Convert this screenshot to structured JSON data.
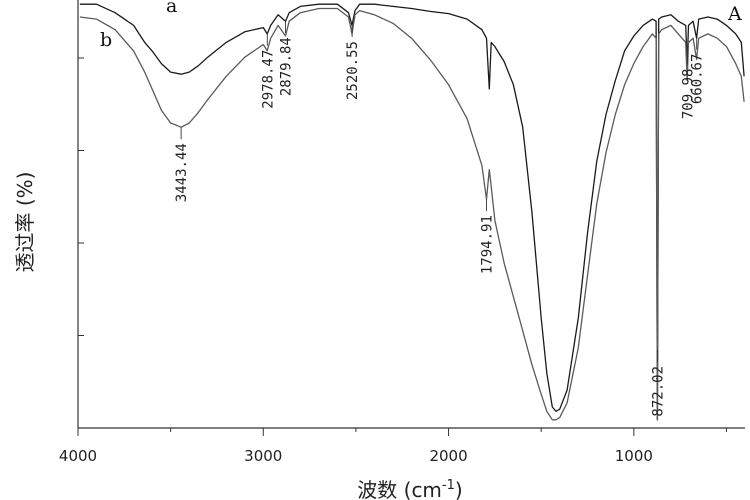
{
  "chart_data": {
    "type": "line",
    "title": "",
    "panel_label": "A",
    "xlabel": "波数 (cm",
    "xlabel_sup": "-1",
    "xlabel_close": ")",
    "ylabel": "透过率 (%)",
    "xlim": [
      4000,
      400
    ],
    "ylim": [
      0,
      100
    ],
    "x_ticks": [
      4000,
      3000,
      2000,
      1000
    ],
    "x_tick_labels": [
      "4000",
      "3000",
      "2000",
      "1000"
    ],
    "grid": false,
    "series": [
      {
        "name": "a",
        "color": "#1a1a1a",
        "points": [
          [
            3990,
            99
          ],
          [
            3900,
            99
          ],
          [
            3800,
            97
          ],
          [
            3700,
            94
          ],
          [
            3640,
            90
          ],
          [
            3600,
            88
          ],
          [
            3550,
            85
          ],
          [
            3500,
            83
          ],
          [
            3443,
            82.5
          ],
          [
            3400,
            83
          ],
          [
            3350,
            84.5
          ],
          [
            3300,
            86.5
          ],
          [
            3200,
            90
          ],
          [
            3100,
            92.5
          ],
          [
            3000,
            93.5
          ],
          [
            2979,
            92
          ],
          [
            2960,
            94
          ],
          [
            2920,
            96.5
          ],
          [
            2880,
            95
          ],
          [
            2860,
            97
          ],
          [
            2800,
            98.5
          ],
          [
            2700,
            99
          ],
          [
            2600,
            99
          ],
          [
            2540,
            97
          ],
          [
            2521,
            94
          ],
          [
            2505,
            97.5
          ],
          [
            2480,
            99
          ],
          [
            2400,
            99
          ],
          [
            2300,
            98.5
          ],
          [
            2200,
            98
          ],
          [
            2100,
            97.3
          ],
          [
            2000,
            96.8
          ],
          [
            1900,
            95.5
          ],
          [
            1820,
            93
          ],
          [
            1795,
            91
          ],
          [
            1780,
            79
          ],
          [
            1770,
            90
          ],
          [
            1750,
            89
          ],
          [
            1700,
            85.5
          ],
          [
            1650,
            80
          ],
          [
            1600,
            70
          ],
          [
            1550,
            50
          ],
          [
            1500,
            25
          ],
          [
            1470,
            12
          ],
          [
            1440,
            4
          ],
          [
            1420,
            3
          ],
          [
            1400,
            3.5
          ],
          [
            1360,
            8
          ],
          [
            1300,
            25
          ],
          [
            1250,
            45
          ],
          [
            1200,
            62
          ],
          [
            1150,
            73
          ],
          [
            1100,
            81
          ],
          [
            1050,
            88
          ],
          [
            1000,
            91.5
          ],
          [
            950,
            94
          ],
          [
            900,
            95.5
          ],
          [
            880,
            95
          ],
          [
            873,
            1
          ],
          [
            866,
            95.5
          ],
          [
            850,
            96
          ],
          [
            800,
            96.5
          ],
          [
            760,
            95
          ],
          [
            720,
            94
          ],
          [
            712,
            85
          ],
          [
            705,
            94
          ],
          [
            680,
            95
          ],
          [
            661,
            91
          ],
          [
            650,
            95.5
          ],
          [
            600,
            96
          ],
          [
            550,
            95.5
          ],
          [
            500,
            94
          ],
          [
            450,
            92
          ],
          [
            420,
            90
          ],
          [
            405,
            82
          ]
        ]
      },
      {
        "name": "b",
        "color": "#5a5a5a",
        "points": [
          [
            3990,
            96
          ],
          [
            3900,
            95.5
          ],
          [
            3800,
            93
          ],
          [
            3700,
            88
          ],
          [
            3640,
            83
          ],
          [
            3600,
            79
          ],
          [
            3550,
            74
          ],
          [
            3500,
            71
          ],
          [
            3443,
            70
          ],
          [
            3400,
            71
          ],
          [
            3350,
            73.5
          ],
          [
            3300,
            76.5
          ],
          [
            3200,
            82
          ],
          [
            3100,
            86.5
          ],
          [
            3000,
            89.5
          ],
          [
            2979,
            88
          ],
          [
            2960,
            91
          ],
          [
            2920,
            94
          ],
          [
            2880,
            91.5
          ],
          [
            2860,
            95
          ],
          [
            2800,
            97
          ],
          [
            2700,
            98
          ],
          [
            2600,
            98
          ],
          [
            2540,
            96
          ],
          [
            2521,
            92
          ],
          [
            2505,
            96.5
          ],
          [
            2480,
            97.5
          ],
          [
            2400,
            96.5
          ],
          [
            2300,
            94.5
          ],
          [
            2200,
            91
          ],
          [
            2100,
            86
          ],
          [
            2000,
            80
          ],
          [
            1900,
            72
          ],
          [
            1820,
            61
          ],
          [
            1795,
            53
          ],
          [
            1780,
            60
          ],
          [
            1770,
            56
          ],
          [
            1750,
            48
          ],
          [
            1700,
            38
          ],
          [
            1650,
            30
          ],
          [
            1600,
            22
          ],
          [
            1550,
            14
          ],
          [
            1500,
            7
          ],
          [
            1470,
            3
          ],
          [
            1440,
            1
          ],
          [
            1420,
            1
          ],
          [
            1400,
            1.5
          ],
          [
            1360,
            5
          ],
          [
            1300,
            18
          ],
          [
            1250,
            35
          ],
          [
            1200,
            52
          ],
          [
            1150,
            64
          ],
          [
            1100,
            73
          ],
          [
            1050,
            80
          ],
          [
            1000,
            85
          ],
          [
            950,
            89
          ],
          [
            900,
            92
          ],
          [
            880,
            91
          ],
          [
            873,
            1
          ],
          [
            866,
            92
          ],
          [
            850,
            93
          ],
          [
            800,
            94
          ],
          [
            760,
            92
          ],
          [
            720,
            90
          ],
          [
            712,
            81
          ],
          [
            705,
            90
          ],
          [
            680,
            91
          ],
          [
            661,
            86
          ],
          [
            650,
            91
          ],
          [
            600,
            92
          ],
          [
            550,
            91
          ],
          [
            500,
            89
          ],
          [
            450,
            85
          ],
          [
            420,
            82
          ],
          [
            405,
            76
          ]
        ]
      }
    ],
    "annotations": [
      {
        "text": "3443.44",
        "x": 3443.44,
        "series": "b"
      },
      {
        "text": "2978.47",
        "x": 2978.47,
        "series": "a"
      },
      {
        "text": "2879.84",
        "x": 2879.84,
        "series": "a"
      },
      {
        "text": "2520.55",
        "x": 2520.55,
        "series": "a"
      },
      {
        "text": "1794.91",
        "x": 1794.91,
        "series": "b"
      },
      {
        "text": "872.02",
        "x": 872.02,
        "series": "b"
      },
      {
        "text": "709.98",
        "x": 709.98,
        "series": "a"
      },
      {
        "text": "660.67",
        "x": 660.67,
        "series": "a"
      }
    ]
  }
}
